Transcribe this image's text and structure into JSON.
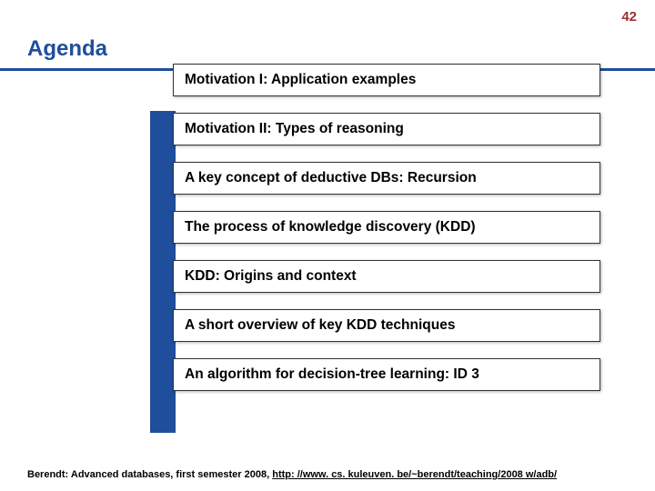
{
  "page_number": "42",
  "title": "Agenda",
  "colors": {
    "accent": "#1f4e9c",
    "page_num": "#a03030",
    "box_border": "#333333",
    "background": "#ffffff"
  },
  "agenda_items": [
    "Motivation I: Application examples",
    "Motivation II: Types of reasoning",
    "A key concept of deductive DBs: Recursion",
    "The process of knowledge discovery (KDD)",
    "KDD: Origins and context",
    "A short overview of key KDD techniques",
    "An algorithm for decision-tree learning: ID 3"
  ],
  "footer": {
    "prefix": "Berendt: Advanced databases, first semester 2008, ",
    "link": "http: //www. cs. kuleuven. be/~berendt/teaching/2008 w/adb/"
  }
}
